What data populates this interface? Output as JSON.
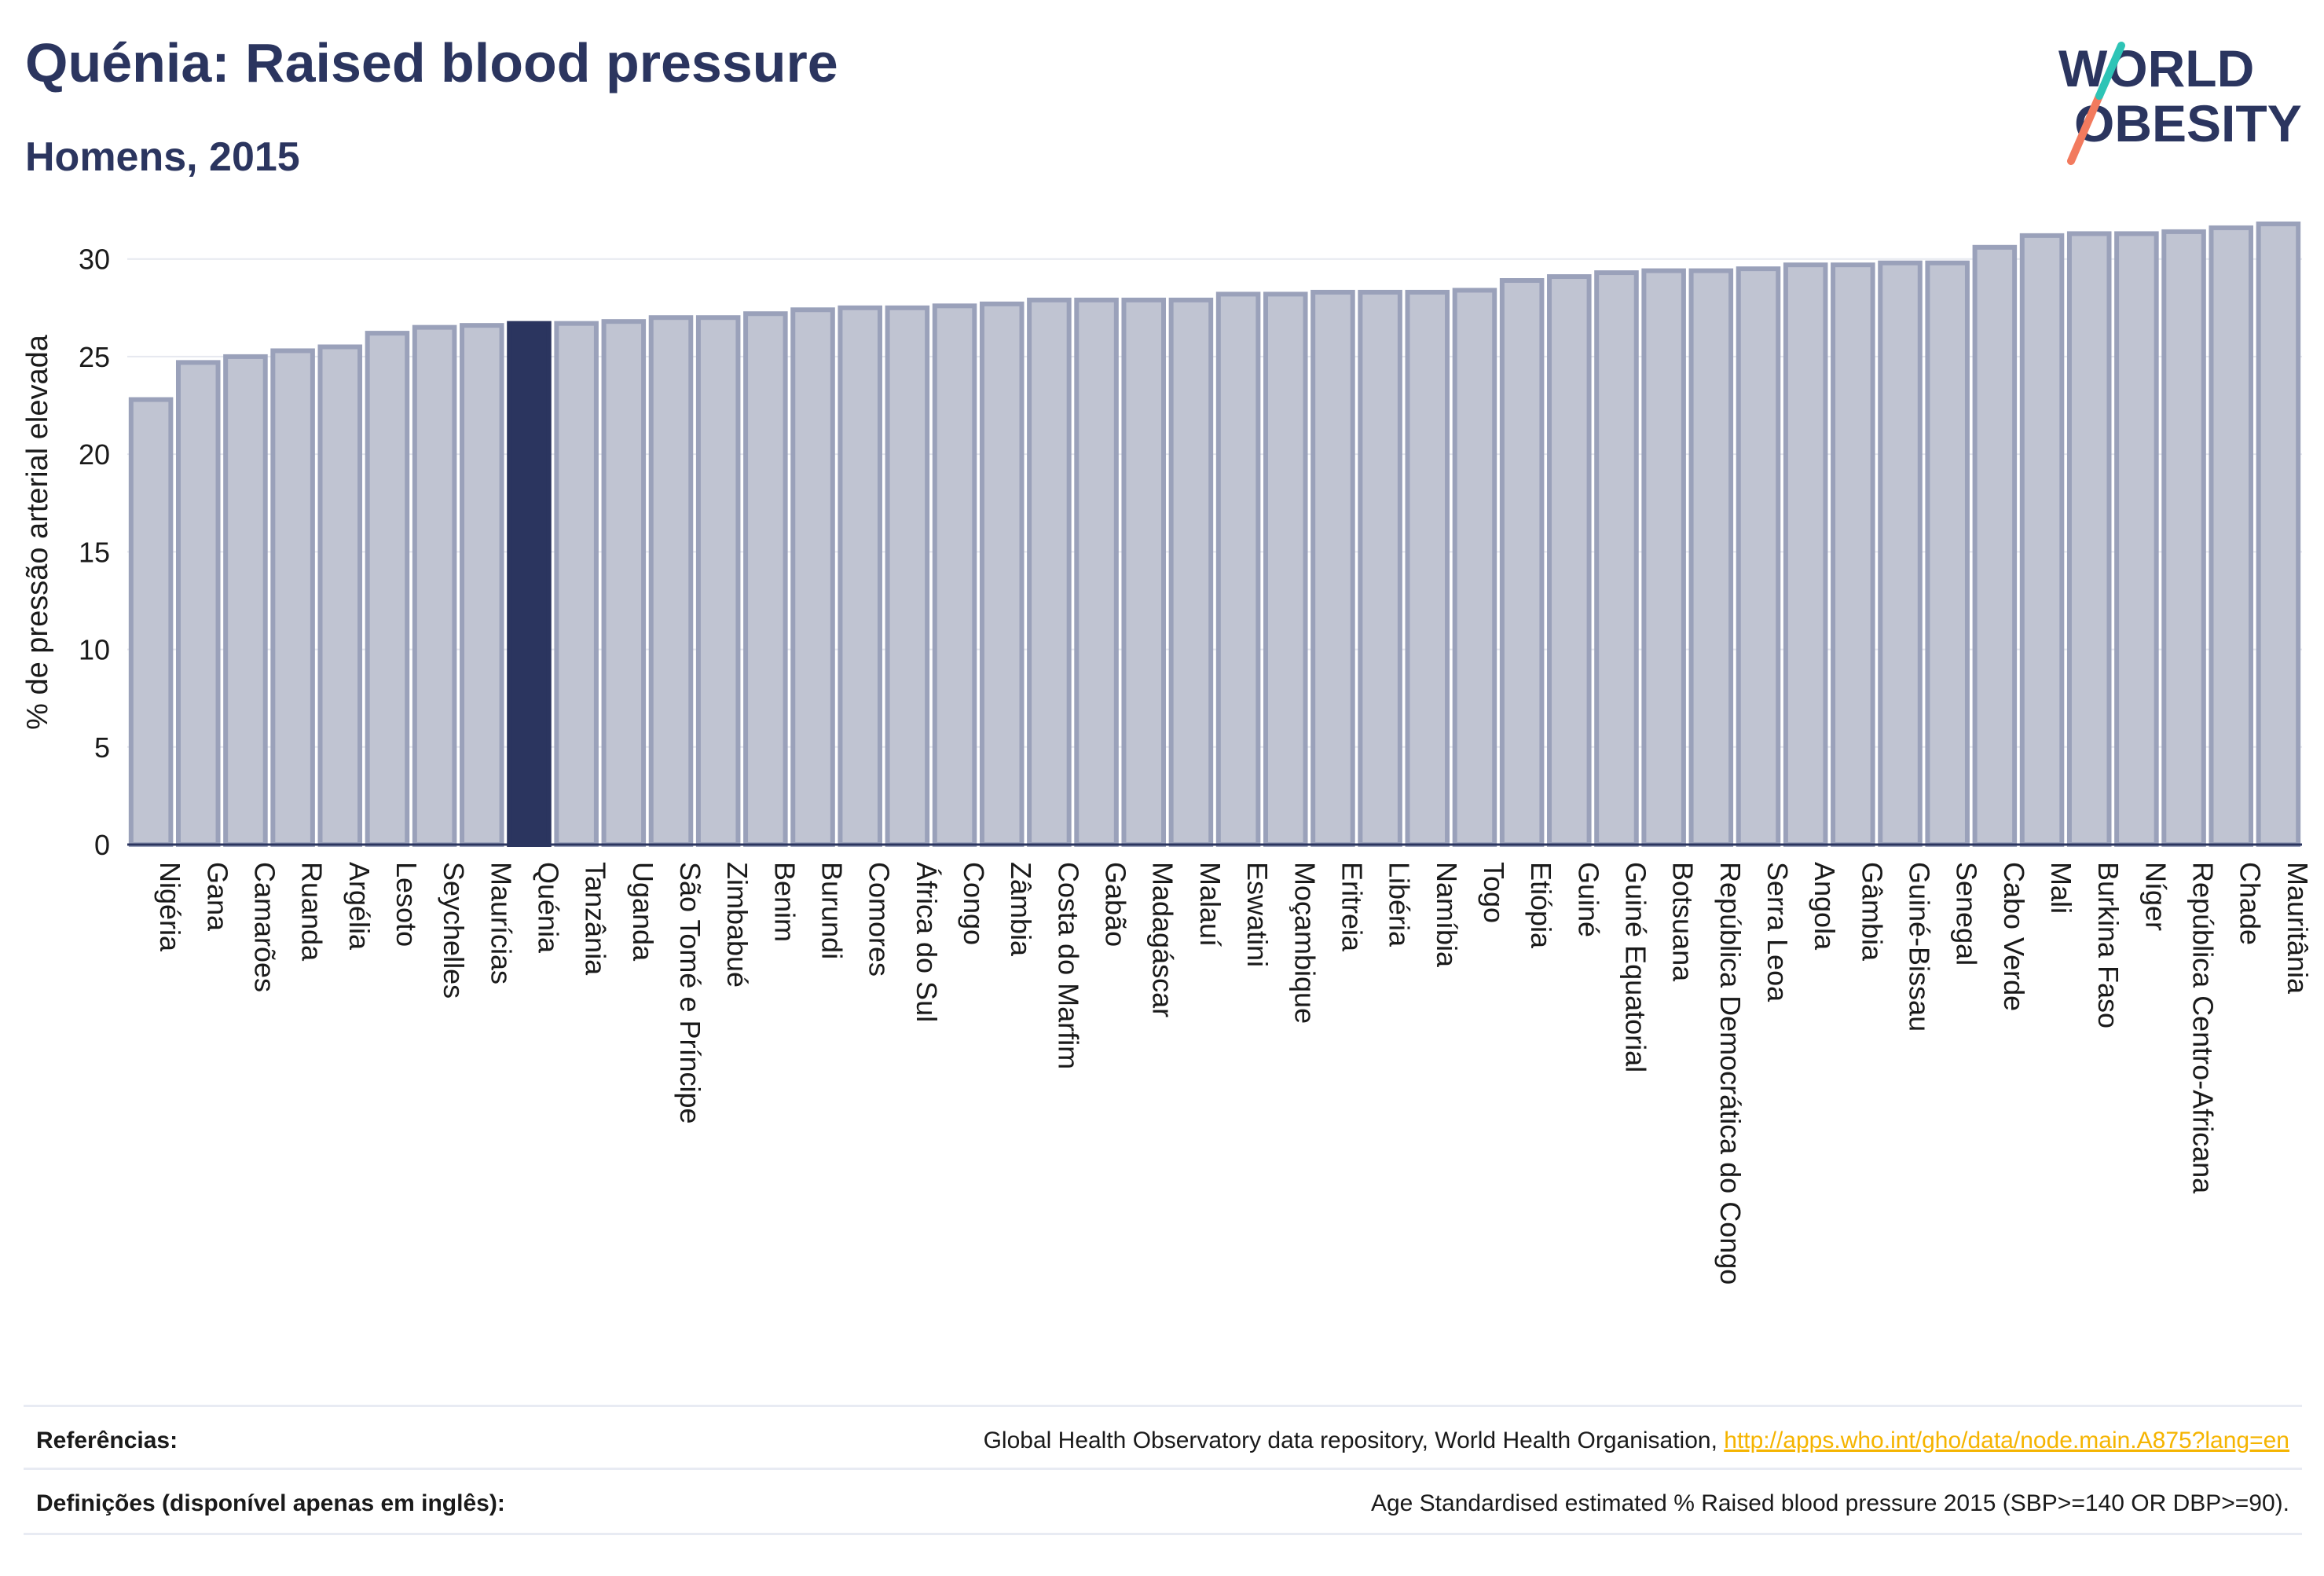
{
  "header": {
    "title": "Quénia: Raised blood pressure",
    "subtitle": "Homens, 2015"
  },
  "logo": {
    "line1": "WORLD",
    "line2": "OBESITY",
    "accent_colors": [
      "#f27a5e",
      "#2ec4b6"
    ]
  },
  "colors": {
    "bar_fill": "#c0c4d2",
    "bar_stroke": "#9aa1ba",
    "highlight_fill": "#2b355f",
    "text": "#2b355f",
    "link": "#f5b400"
  },
  "chart_data": {
    "type": "bar",
    "ylabel": "% de pressão arterial elevada",
    "ylim": [
      0,
      32
    ],
    "yticks": [
      0,
      5,
      10,
      15,
      20,
      25,
      30
    ],
    "grid": true,
    "highlight": "Quénia",
    "categories": [
      "Nigéria",
      "Gana",
      "Camarões",
      "Ruanda",
      "Argélia",
      "Lesoto",
      "Seychelles",
      "Maurícias",
      "Quénia",
      "Tanzânia",
      "Uganda",
      "São Tomé e Príncipe",
      "Zimbabué",
      "Benim",
      "Burundi",
      "Comores",
      "África do Sul",
      "Congo",
      "Zâmbia",
      "Costa do Marfim",
      "Gabão",
      "Madagáscar",
      "Malauí",
      "Eswatini",
      "Moçambique",
      "Eritreia",
      "Libéria",
      "Namíbia",
      "Togo",
      "Etiópia",
      "Guiné",
      "Guiné Equatorial",
      "Botsuana",
      "República Democrática do Congo",
      "Serra Leoa",
      "Angola",
      "Gâmbia",
      "Guiné-Bissau",
      "Senegal",
      "Cabo Verde",
      "Mali",
      "Burkina Faso",
      "Níger",
      "República Centro-Africana",
      "Chade",
      "Mauritânia"
    ],
    "values": [
      22.8,
      24.7,
      25.0,
      25.3,
      25.5,
      26.2,
      26.5,
      26.6,
      26.7,
      26.7,
      26.8,
      27.0,
      27.0,
      27.2,
      27.4,
      27.5,
      27.5,
      27.6,
      27.7,
      27.9,
      27.9,
      27.9,
      27.9,
      28.2,
      28.2,
      28.3,
      28.3,
      28.3,
      28.4,
      28.9,
      29.1,
      29.3,
      29.4,
      29.4,
      29.5,
      29.7,
      29.7,
      29.8,
      29.8,
      30.6,
      31.2,
      31.3,
      31.3,
      31.4,
      31.6,
      31.8
    ]
  },
  "footer": {
    "references_label": "Referências:",
    "references_text": "Global Health Observatory data repository, World Health Organisation, ",
    "references_link": "http://apps.who.int/gho/data/node.main.A875?lang=en",
    "definitions_label": "Definições (disponível apenas em inglês):",
    "definitions_text": "Age Standardised estimated % Raised blood pressure 2015 (SBP>=140 OR DBP>=90)."
  }
}
